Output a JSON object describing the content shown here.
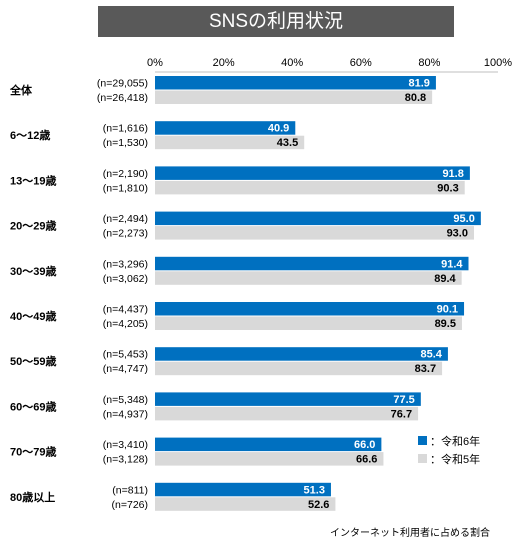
{
  "chart_data": {
    "type": "bar",
    "orientation": "horizontal",
    "title": "SNSの利用状況",
    "categories": [
      "全体",
      "6～12歳",
      "13～19歳",
      "20～29歳",
      "30～39歳",
      "40～49歳",
      "50～59歳",
      "60～69歳",
      "70～79歳",
      "80歳以上"
    ],
    "series": [
      {
        "name": "：令和6年",
        "color": "#0070c0",
        "values": [
          81.9,
          40.9,
          91.8,
          95.0,
          91.4,
          90.1,
          85.4,
          77.5,
          66.0,
          51.3
        ],
        "labels": [
          "81.9",
          "40.9",
          "91.8",
          "95.0",
          "91.4",
          "90.1",
          "85.4",
          "77.5",
          "66.0",
          "51.3"
        ],
        "n": [
          "(n=29,055)",
          "(n=1,616)",
          "(n=2,190)",
          "(n=2,494)",
          "(n=3,296)",
          "(n=4,437)",
          "(n=5,453)",
          "(n=5,348)",
          "(n=3,410)",
          "(n=811)"
        ]
      },
      {
        "name": "：令和5年",
        "color": "#d9d9d9",
        "values": [
          80.8,
          43.5,
          90.3,
          93.0,
          89.4,
          89.5,
          83.7,
          76.7,
          66.6,
          52.6
        ],
        "labels": [
          "80.8",
          "43.5",
          "90.3",
          "93.0",
          "89.4",
          "89.5",
          "83.7",
          "76.7",
          "66.6",
          "52.6"
        ],
        "n": [
          "(n=26,418)",
          "(n=1,530)",
          "(n=1,810)",
          "(n=2,273)",
          "(n=3,062)",
          "(n=4,205)",
          "(n=4,747)",
          "(n=4,937)",
          "(n=3,128)",
          "(n=726)"
        ]
      }
    ],
    "xlim": [
      0,
      100
    ],
    "xticks": [
      "0%",
      "20%",
      "40%",
      "60%",
      "80%",
      "100%"
    ],
    "legend_position": "right",
    "grid": false,
    "footnote": "インターネット利用者に占める割合"
  }
}
